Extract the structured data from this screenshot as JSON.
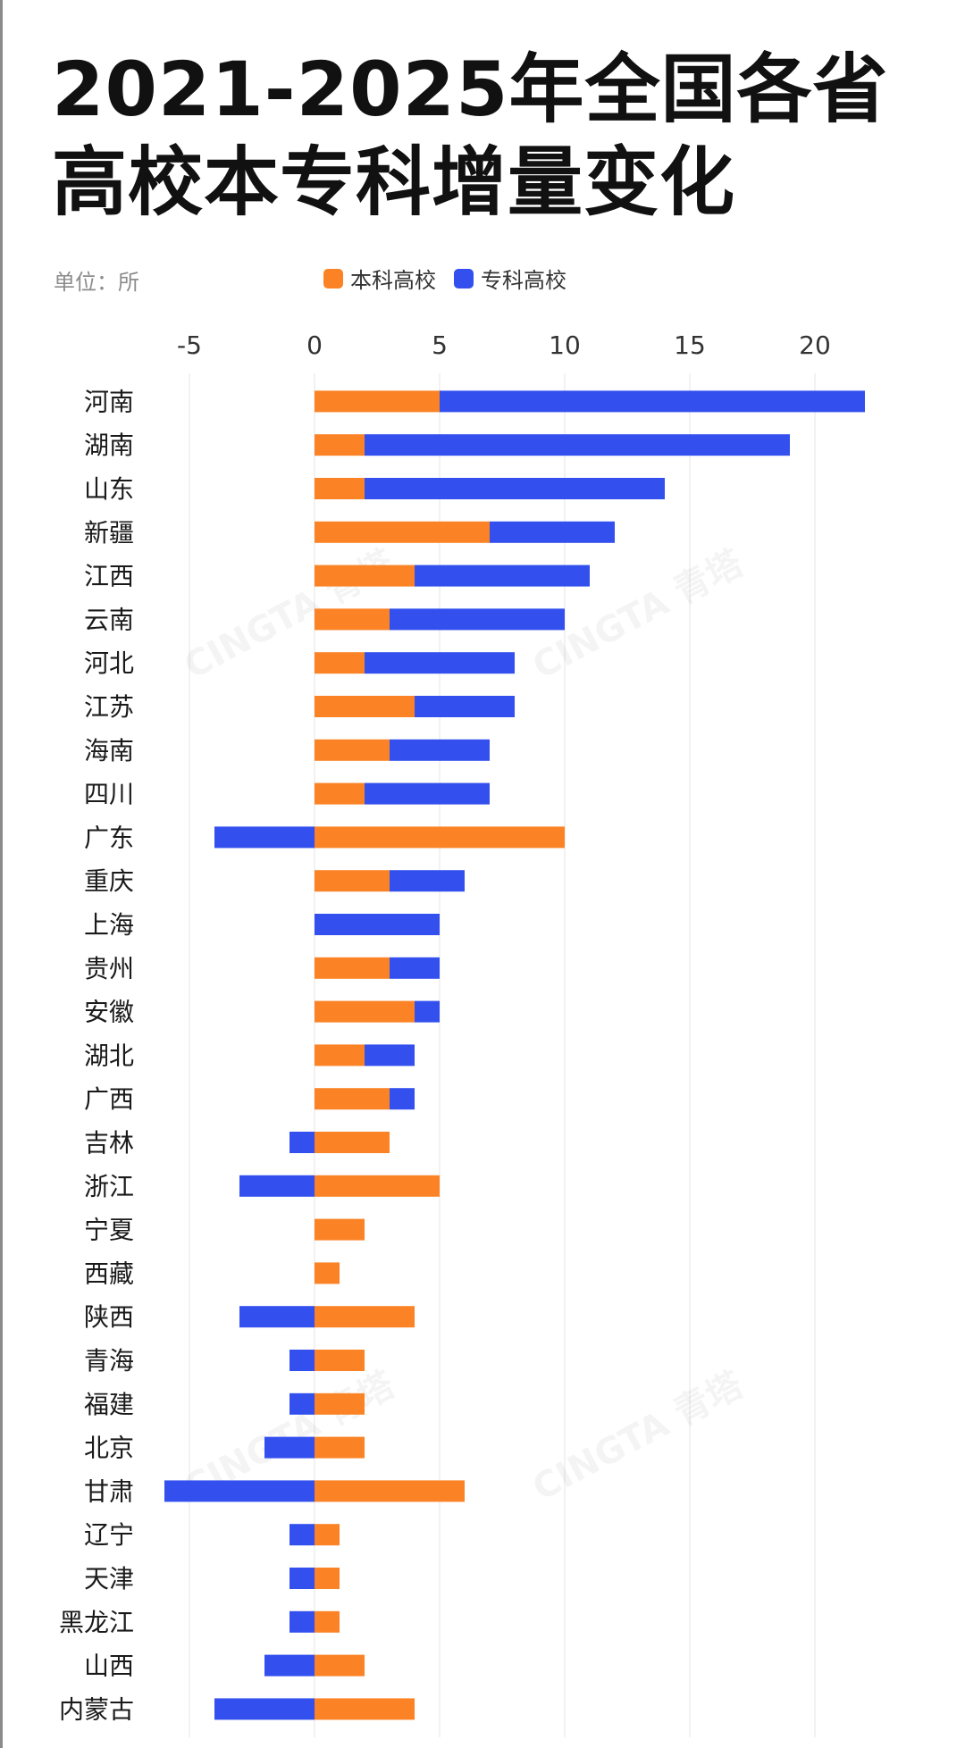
{
  "title_line1": "2021-2025年全国各省",
  "title_line2": "高校本专科增量变化",
  "unit_label": "单位：所",
  "colors": {
    "undergrad": "#fb8326",
    "junior": "#3350ee",
    "grid": "#eeeeee"
  },
  "watermark": "CINGTA 青塔",
  "chart_data": {
    "type": "bar",
    "orientation": "horizontal",
    "stacked": true,
    "title": "2021-2025年全国各省高校本专科增量变化",
    "unit": "单位：所",
    "legend_position": "top",
    "xlim": [
      -5,
      22
    ],
    "xticks": [
      -5,
      0,
      5,
      10,
      15,
      20
    ],
    "grid": true,
    "categories": [
      "河南",
      "湖南",
      "山东",
      "新疆",
      "江西",
      "云南",
      "河北",
      "江苏",
      "海南",
      "四川",
      "广东",
      "重庆",
      "上海",
      "贵州",
      "安徽",
      "湖北",
      "广西",
      "吉林",
      "浙江",
      "宁夏",
      "西藏",
      "陕西",
      "青海",
      "福建",
      "北京",
      "甘肃",
      "辽宁",
      "天津",
      "黑龙江",
      "山西",
      "内蒙古"
    ],
    "series": [
      {
        "name": "本科高校",
        "color": "#fb8326",
        "values": [
          5,
          2,
          2,
          7,
          4,
          3,
          2,
          4,
          3,
          2,
          10,
          3,
          0,
          3,
          4,
          2,
          3,
          3,
          5,
          2,
          1,
          4,
          2,
          2,
          2,
          6,
          1,
          1,
          1,
          2,
          4
        ]
      },
      {
        "name": "专科高校",
        "color": "#3350ee",
        "values": [
          17,
          17,
          12,
          5,
          7,
          7,
          6,
          4,
          4,
          5,
          -4,
          3,
          5,
          2,
          1,
          2,
          1,
          -1,
          -3,
          0,
          0,
          -3,
          -1,
          -1,
          -2,
          -6,
          -1,
          -1,
          -1,
          -2,
          -4
        ]
      }
    ]
  }
}
